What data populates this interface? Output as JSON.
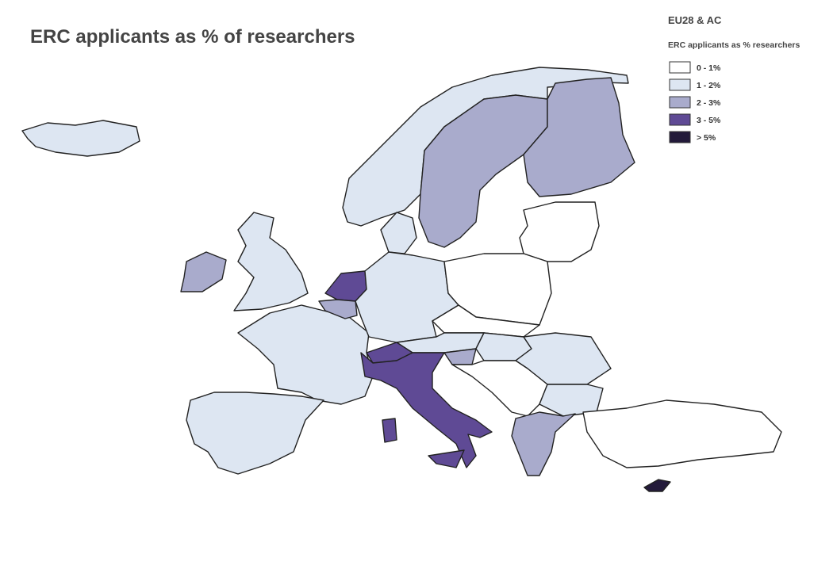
{
  "title": "ERC applicants as % of researchers",
  "legend": {
    "heading": "EU28 & AC",
    "title": "ERC applicants as % researchers",
    "items": [
      {
        "label": "0 - 1%",
        "color": "#ffffff"
      },
      {
        "label": "1 - 2%",
        "color": "#dde6f2"
      },
      {
        "label": "2 - 3%",
        "color": "#a9abcc"
      },
      {
        "label": "3 - 5%",
        "color": "#5f4a95"
      },
      {
        "label": "> 5%",
        "color": "#231a3a"
      }
    ]
  }
}
